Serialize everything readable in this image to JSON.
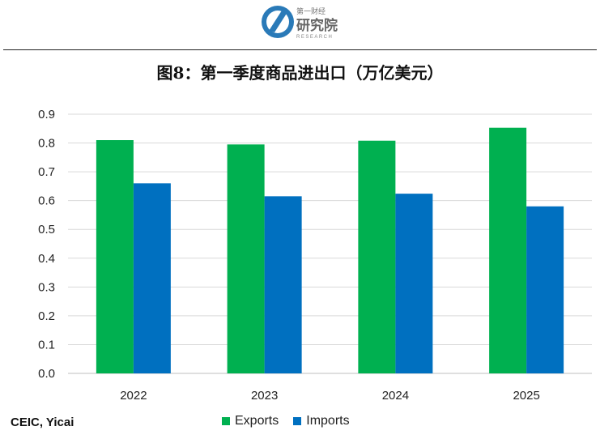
{
  "header": {
    "logo_top_text": "第一财经",
    "logo_main_text": "研究院",
    "logo_sub_text": "RESEARCH"
  },
  "footer": {
    "source": "CEIC, Yicai"
  },
  "colors": {
    "exports": "#00b050",
    "imports": "#0070c0",
    "grid": "#d9d9d9",
    "logo_blue": "#2a7ab8"
  },
  "chart_data": {
    "type": "bar",
    "title": "图8：第一季度商品进出口（万亿美元）",
    "categories": [
      "2022",
      "2023",
      "2024",
      "2025"
    ],
    "series": [
      {
        "name": "Exports",
        "values": [
          0.81,
          0.795,
          0.808,
          0.853
        ]
      },
      {
        "name": "Imports",
        "values": [
          0.66,
          0.615,
          0.624,
          0.58
        ]
      }
    ],
    "ylim": [
      0,
      0.9
    ],
    "yticks": [
      "0.0",
      "0.1",
      "0.2",
      "0.3",
      "0.4",
      "0.5",
      "0.6",
      "0.7",
      "0.8",
      "0.9"
    ],
    "xlabel": "",
    "ylabel": "",
    "grid": true,
    "legend_position": "bottom"
  }
}
